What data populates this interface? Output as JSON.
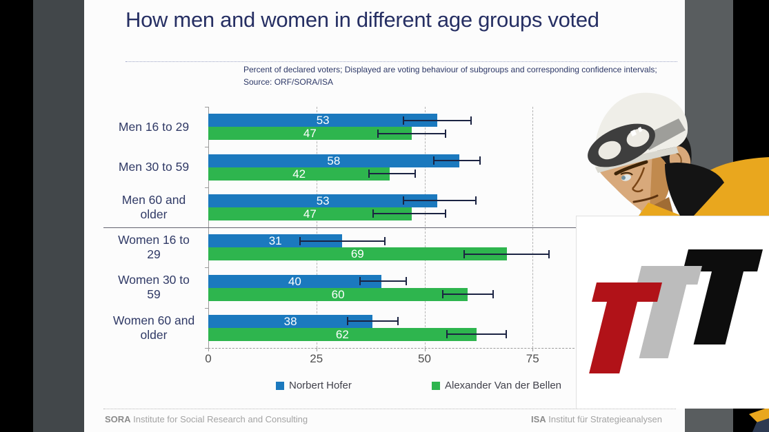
{
  "slide": {
    "title": "How men and women in different age groups voted",
    "subtitle_line1": "Percent of declared voters; Displayed are voting behaviour of subgroups and corresponding confidence intervals;",
    "subtitle_line2": "Source: ORF/SORA/ISA",
    "footer": {
      "left_bold": "SORA",
      "left_text": " Institute for Social Research and Consulting",
      "right_bold": "ISA",
      "right_text": " Institut für Strategieanalysen"
    }
  },
  "chart_data": {
    "type": "bar",
    "orientation": "horizontal",
    "title": "How men and women in different age groups voted",
    "categories": [
      "Men 16 to 29",
      "Men 30 to 59",
      "Men 60 and older",
      "Women 16 to 29",
      "Women 30 to 59",
      "Women 60 and older"
    ],
    "categories_display": [
      [
        "Men 16 to 29"
      ],
      [
        "Men 30 to 59"
      ],
      [
        "Men 60 and",
        "older"
      ],
      [
        "Women 16 to",
        "29"
      ],
      [
        "Women 30 to",
        "59"
      ],
      [
        "Women 60 and",
        "older"
      ]
    ],
    "series": [
      {
        "name": "Norbert Hofer",
        "color": "#1b79be",
        "values": [
          53,
          58,
          53,
          31,
          40,
          38
        ],
        "ci_low": [
          45,
          52,
          45,
          21,
          35,
          32
        ],
        "ci_high": [
          61,
          63,
          62,
          41,
          46,
          44
        ]
      },
      {
        "name": "Alexander Van der Bellen",
        "color": "#2eb54e",
        "values": [
          47,
          42,
          47,
          69,
          60,
          62
        ],
        "ci_low": [
          39,
          37,
          38,
          59,
          54,
          55
        ],
        "ci_high": [
          55,
          48,
          55,
          79,
          66,
          69
        ]
      }
    ],
    "x_ticks": [
      0,
      25,
      50,
      75
    ],
    "gridlines": [
      25,
      50,
      75,
      100
    ],
    "xlim": [
      0,
      85
    ],
    "grid_style": "dashed",
    "legend_position": "bottom",
    "error_bar_color": "#1b2342",
    "value_labels": "inside-center-white",
    "separator_after_category_index": 2
  },
  "decor": {
    "ttt_logo_colors": {
      "red": "#b11218",
      "gray": "#bcbcbc",
      "black": "#0d0d0d"
    },
    "character_name": "construction-worker-cartoon",
    "character_colors": {
      "helmet": "#efeee8",
      "goggles": "#3e3e3e",
      "skin": "#d8a97b",
      "jacket": "#e9a71e",
      "collar": "#141414"
    }
  }
}
